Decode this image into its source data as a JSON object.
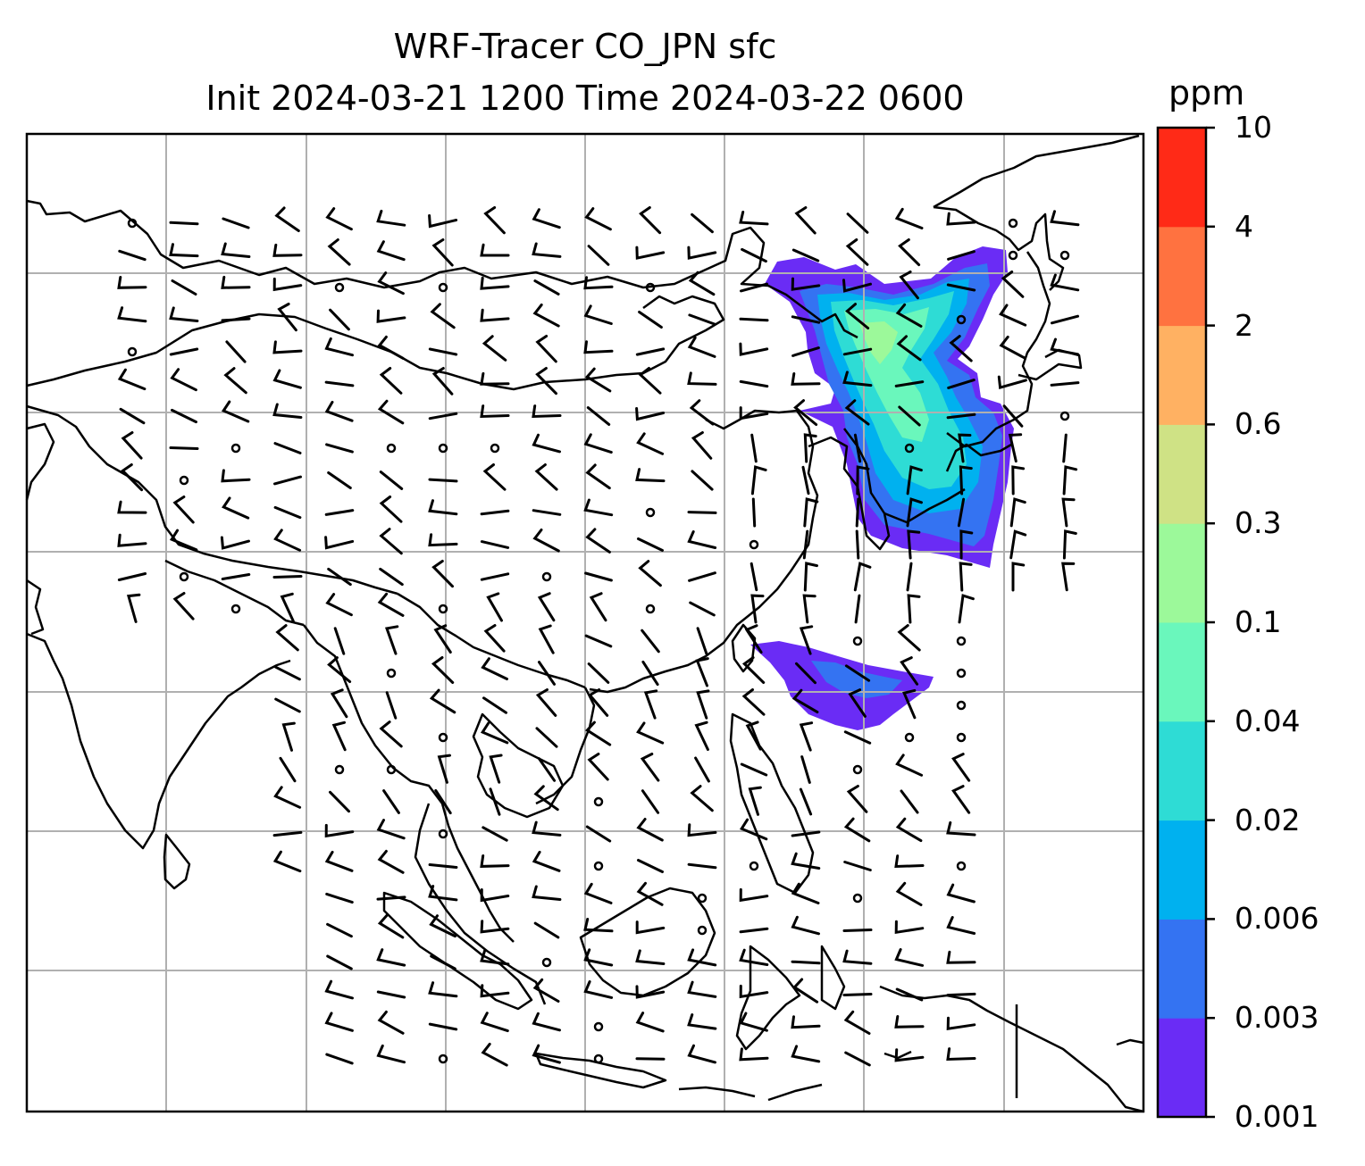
{
  "title": {
    "line1": "WRF-Tracer CO_JPN sfc",
    "line2": "Init 2024-03-21 1200 Time 2024-03-22 0600"
  },
  "colorbar": {
    "unit": "ppm",
    "levels": [
      "0.001",
      "0.003",
      "0.006",
      "0.02",
      "0.04",
      "0.1",
      "0.3",
      "0.6",
      "2",
      "4",
      "10"
    ],
    "colors": [
      "#6a2cf5",
      "#3473f2",
      "#00b1ef",
      "#2edcd5",
      "#6af7bc",
      "#9cf99a",
      "#cfe285",
      "#ffb162",
      "#ff7240",
      "#ff2a17"
    ]
  },
  "map": {
    "gridlines": true,
    "wind_barbs": true,
    "tracer": "CO_JPN"
  }
}
